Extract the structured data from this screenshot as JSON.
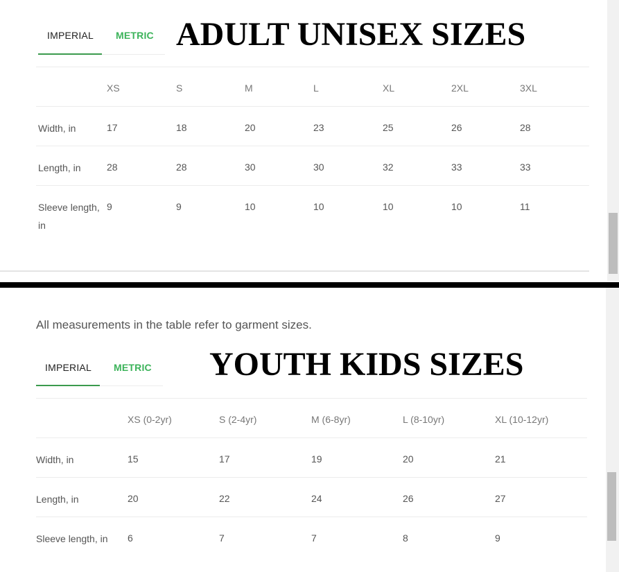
{
  "adult": {
    "tabs": {
      "imperial": "IMPERIAL",
      "metric": "METRIC"
    },
    "title": "ADULT UNISEX SIZES",
    "headers": [
      "XS",
      "S",
      "M",
      "L",
      "XL",
      "2XL",
      "3XL"
    ],
    "rows": [
      {
        "label": "Width, in",
        "values": [
          "17",
          "18",
          "20",
          "23",
          "25",
          "26",
          "28"
        ]
      },
      {
        "label": "Length, in",
        "values": [
          "28",
          "28",
          "30",
          "30",
          "32",
          "33",
          "33"
        ]
      },
      {
        "label": "Sleeve length, in",
        "values": [
          "9",
          "9",
          "10",
          "10",
          "10",
          "10",
          "11"
        ]
      }
    ]
  },
  "youth": {
    "note": "All measurements in the table refer to garment sizes.",
    "tabs": {
      "imperial": "IMPERIAL",
      "metric": "METRIC"
    },
    "title": "YOUTH KIDS SIZES",
    "headers": [
      "XS (0-2yr)",
      "S (2-4yr)",
      "M (6-8yr)",
      "L (8-10yr)",
      "XL (10-12yr)"
    ],
    "rows": [
      {
        "label": "Width, in",
        "values": [
          "15",
          "17",
          "19",
          "20",
          "21"
        ]
      },
      {
        "label": "Length, in",
        "values": [
          "20",
          "22",
          "24",
          "26",
          "27"
        ]
      },
      {
        "label": "Sleeve length, in",
        "values": [
          "6",
          "7",
          "7",
          "8",
          "9"
        ]
      }
    ]
  },
  "colors": {
    "accent": "#3cb35a",
    "divider": "#000000"
  }
}
